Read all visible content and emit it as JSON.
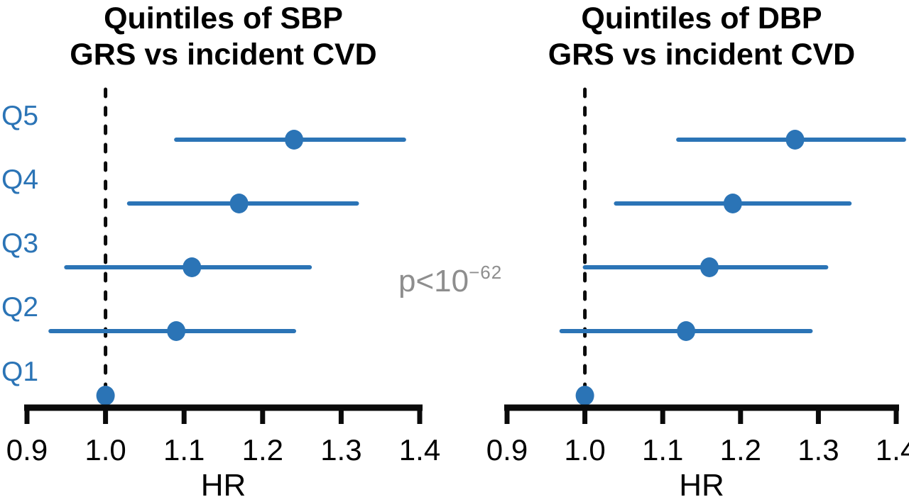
{
  "chart_data": {
    "type": "forest",
    "x_axis": {
      "label": "HR",
      "min": 0.9,
      "max": 1.4,
      "ticks": [
        0.9,
        1.0,
        1.1,
        1.2,
        1.3,
        1.4
      ],
      "tick_labels": [
        "0.9",
        "1.0",
        "1.1",
        "1.2",
        "1.3",
        "1.4"
      ],
      "reference_line_x": 1.0
    },
    "panels": [
      {
        "id": "sbp",
        "title_line1": "Quintiles of SBP",
        "title_line2": "GRS vs incident CVD",
        "show_row_labels": true,
        "points": [
          {
            "label": "Q5",
            "hr": 1.24,
            "ci_low": 1.09,
            "ci_high": 1.38
          },
          {
            "label": "Q4",
            "hr": 1.17,
            "ci_low": 1.03,
            "ci_high": 1.32
          },
          {
            "label": "Q3",
            "hr": 1.11,
            "ci_low": 0.95,
            "ci_high": 1.26
          },
          {
            "label": "Q2",
            "hr": 1.09,
            "ci_low": 0.93,
            "ci_high": 1.24
          },
          {
            "label": "Q1",
            "hr": 1.0,
            "ci_low": 1.0,
            "ci_high": 1.0,
            "reference": true
          }
        ]
      },
      {
        "id": "dbp",
        "title_line1": "Quintiles of DBP",
        "title_line2": "GRS vs incident CVD",
        "show_row_labels": false,
        "points": [
          {
            "label": "Q5",
            "hr": 1.27,
            "ci_low": 1.12,
            "ci_high": 1.41
          },
          {
            "label": "Q4",
            "hr": 1.19,
            "ci_low": 1.04,
            "ci_high": 1.34
          },
          {
            "label": "Q3",
            "hr": 1.16,
            "ci_low": 1.0,
            "ci_high": 1.31
          },
          {
            "label": "Q2",
            "hr": 1.13,
            "ci_low": 0.97,
            "ci_high": 1.29
          },
          {
            "label": "Q1",
            "hr": 1.0,
            "ci_low": 1.0,
            "ci_high": 1.0,
            "reference": true
          }
        ]
      }
    ],
    "annotation": {
      "base": "p<10",
      "exponent": "−62"
    },
    "colors": {
      "series_blue": "#2B74B6",
      "row_label_blue": "#2B74B6",
      "axis_black": "#0a0a0a",
      "annotation_gray": "#8e8e8e"
    }
  }
}
